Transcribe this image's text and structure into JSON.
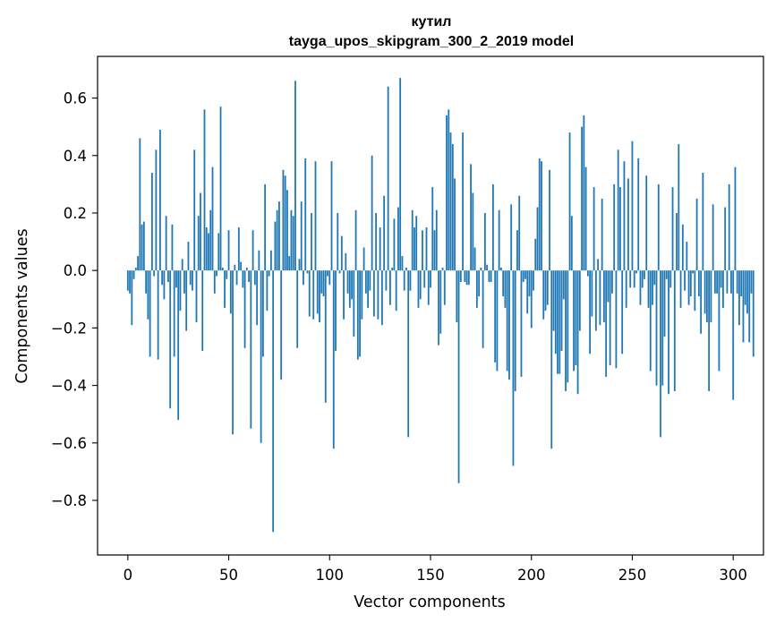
{
  "chart_data": {
    "type": "bar",
    "title": "кутил",
    "subtitle": "tayga_upos_skipgram_300_2_2019 model",
    "xlabel": "Vector components",
    "ylabel": "Components values",
    "xlim": [
      -15,
      315
    ],
    "ylim": [
      -0.99,
      0.745
    ],
    "xticks": [
      0,
      50,
      100,
      150,
      200,
      250,
      300
    ],
    "yticks": [
      -0.8,
      -0.6,
      -0.4,
      -0.2,
      0.0,
      0.2,
      0.4,
      0.6
    ],
    "ytick_labels": [
      "−0.8",
      "−0.6",
      "−0.4",
      "−0.2",
      "0.0",
      "0.2",
      "0.4",
      "0.6"
    ],
    "x_start": 0,
    "values": [
      -0.07,
      -0.08,
      -0.19,
      -0.03,
      0.01,
      0.05,
      0.46,
      0.16,
      0.17,
      -0.08,
      -0.17,
      -0.3,
      0.34,
      -0.02,
      0.42,
      -0.31,
      0.49,
      -0.05,
      -0.1,
      0.19,
      -0.04,
      -0.48,
      0.16,
      -0.3,
      -0.06,
      -0.52,
      -0.14,
      0.04,
      -0.08,
      -0.21,
      0.1,
      -0.05,
      -0.07,
      0.42,
      -0.18,
      0.19,
      0.27,
      -0.28,
      0.56,
      0.15,
      0.13,
      0.21,
      0.36,
      -0.08,
      -0.02,
      0.13,
      0.57,
      0.01,
      -0.13,
      -0.03,
      0.14,
      -0.15,
      -0.57,
      0.02,
      -0.05,
      0.15,
      0.03,
      -0.06,
      -0.27,
      0.01,
      -0.04,
      -0.55,
      0.14,
      -0.05,
      -0.19,
      0.07,
      -0.6,
      -0.3,
      0.3,
      -0.14,
      -0.02,
      0.07,
      -0.91,
      0.17,
      0.21,
      0.24,
      -0.38,
      0.35,
      0.33,
      0.28,
      0.05,
      0.21,
      0.19,
      0.66,
      -0.27,
      0.04,
      0.24,
      -0.05,
      0.39,
      -0.01,
      -0.16,
      0.2,
      -0.17,
      0.38,
      -0.15,
      -0.18,
      -0.08,
      -0.09,
      -0.46,
      -0.02,
      -0.05,
      0.38,
      -0.62,
      -0.28,
      0.2,
      -0.01,
      0.12,
      -0.17,
      0.06,
      -0.08,
      -0.13,
      -0.1,
      -0.23,
      0.21,
      -0.31,
      -0.3,
      -0.17,
      0.08,
      -0.08,
      -0.13,
      -0.07,
      0.4,
      -0.16,
      0.2,
      -0.17,
      0.15,
      -0.19,
      0.26,
      -0.07,
      0.64,
      -0.12,
      0.01,
      0.18,
      -0.14,
      0.22,
      0.67,
      0.05,
      -0.07,
      0.01,
      -0.58,
      -0.07,
      0.21,
      0.15,
      0.19,
      -0.13,
      -0.1,
      0.14,
      -0.06,
      0.15,
      -0.12,
      -0.06,
      0.29,
      0.14,
      0.21,
      -0.26,
      -0.22,
      0.01,
      -0.12,
      0.54,
      0.56,
      0.48,
      0.44,
      0.32,
      -0.18,
      -0.74,
      -0.04,
      0.48,
      -0.04,
      -0.05,
      -0.05,
      0.37,
      0.27,
      0.08,
      -0.13,
      -0.09,
      0.01,
      -0.27,
      0.2,
      0.02,
      -0.04,
      -0.04,
      0.3,
      -0.32,
      -0.35,
      0.21,
      0.01,
      -0.09,
      -0.13,
      -0.35,
      -0.38,
      0.23,
      -0.68,
      -0.42,
      0.14,
      0.26,
      -0.37,
      -0.04,
      -0.03,
      -0.15,
      -0.09,
      -0.2,
      -0.07,
      0.11,
      0.22,
      0.39,
      0.38,
      -0.17,
      -0.14,
      -0.12,
      0.35,
      -0.62,
      -0.21,
      -0.29,
      -0.36,
      -0.36,
      -0.28,
      -0.1,
      -0.42,
      -0.39,
      0.48,
      0.19,
      -0.35,
      -0.33,
      -0.43,
      -0.21,
      0.5,
      0.54,
      0.36,
      -0.02,
      -0.29,
      -0.16,
      0.29,
      -0.21,
      0.04,
      -0.19,
      0.25,
      -0.18,
      -0.37,
      -0.11,
      -0.33,
      -0.08,
      0.3,
      -0.34,
      0.42,
      0.29,
      -0.29,
      0.38,
      -0.13,
      0.32,
      -0.06,
      0.45,
      -0.06,
      -0.01,
      0.39,
      -0.12,
      -0.06,
      -0.03,
      0.33,
      -0.13,
      -0.35,
      -0.12,
      -0.05,
      -0.4,
      0.3,
      -0.58,
      -0.4,
      -0.23,
      -0.03,
      -0.43,
      -0.06,
      0.29,
      -0.42,
      0.2,
      0.44,
      -0.13,
      0.16,
      -0.07,
      0.1,
      -0.12,
      -0.09,
      -0.01,
      -0.14,
      0.25,
      -0.09,
      -0.22,
      0.34,
      -0.15,
      -0.18,
      -0.42,
      -0.18,
      0.23,
      -0.08,
      -0.08,
      -0.35,
      -0.06,
      -0.13,
      0.22,
      -0.08,
      0.3,
      -0.08,
      -0.45,
      0.36,
      -0.08,
      -0.19,
      -0.09,
      -0.25,
      -0.12,
      -0.15,
      -0.25,
      -0.08,
      -0.3
    ]
  }
}
